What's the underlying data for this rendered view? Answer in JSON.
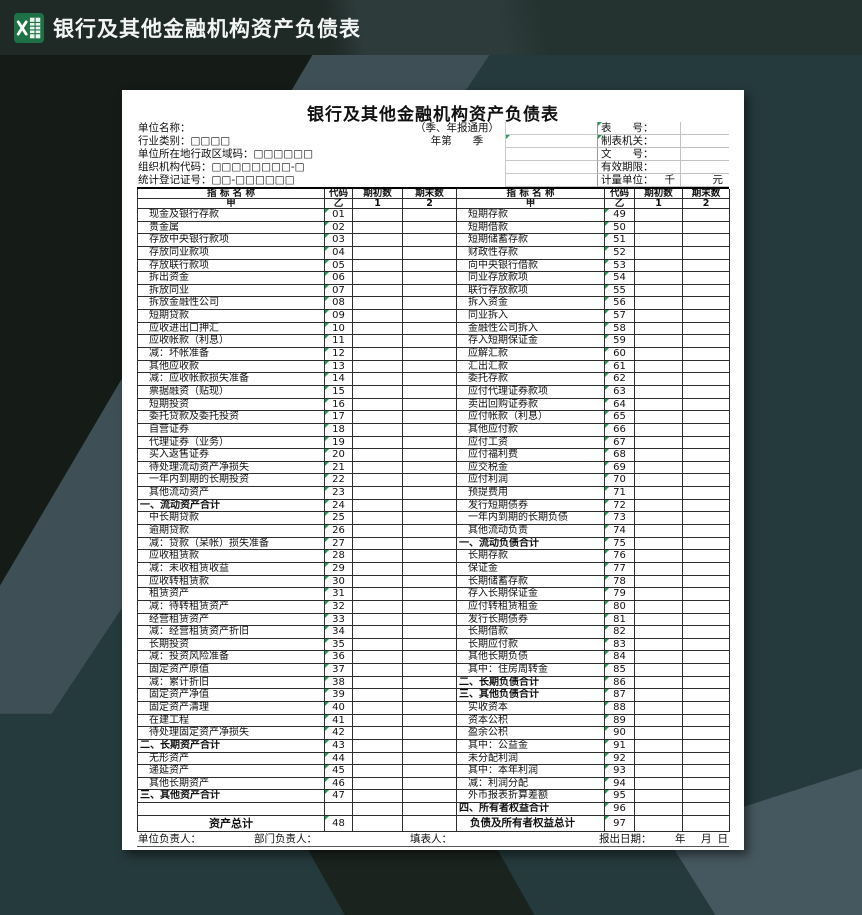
{
  "window": {
    "title": "银行及其他金融机构资产负债表"
  },
  "colors": {
    "excel_green": "#1e7145",
    "marker_green": "#1f9d55",
    "bg_dark": "#151c18",
    "bg_slate": "#3e5056",
    "bg_teal": "#253a3d",
    "sheet_bg": "#ffffff"
  },
  "sheet": {
    "title": "银行及其他金融机构资产负债表",
    "info_rows": [
      {
        "label": "单位名称：",
        "mid": "（季、年报通用）",
        "right_label": "表　　号：",
        "right_value": ""
      },
      {
        "label": "行业类别：□□□□",
        "mid": "年第　　季",
        "right_label": "制表机关：",
        "right_value": ""
      },
      {
        "label": "单位所在地行政区域码：□□□□□□",
        "mid": "",
        "right_label": "文　　号：",
        "right_value": ""
      },
      {
        "label": "组织机构代码：□□□□□□□□-□",
        "mid": "",
        "right_label": "有效期限：",
        "right_value": ""
      },
      {
        "label": "统计登记证号：□□-□□□□□□",
        "mid": "",
        "right_label": "计量单位：",
        "unit_thousand": "千",
        "unit_yuan": "元"
      }
    ],
    "columns": {
      "name": "指 标 名 称",
      "code": "代码",
      "begin": "期初数",
      "end": "期末数",
      "sub_name": "甲",
      "sub_code": "乙",
      "sub_begin": "1",
      "sub_end": "2"
    },
    "rows": [
      {
        "l": "现金及银行存款",
        "lc": "01",
        "ls": "item",
        "r": "短期存款",
        "rc": "49",
        "rs": "item"
      },
      {
        "l": "贵金属",
        "lc": "02",
        "ls": "item",
        "r": "短期借款",
        "rc": "50",
        "rs": "item"
      },
      {
        "l": "存放中央银行款项",
        "lc": "03",
        "ls": "item",
        "r": "短期储蓄存款",
        "rc": "51",
        "rs": "item"
      },
      {
        "l": "存放同业款项",
        "lc": "04",
        "ls": "item",
        "r": "财政性存款",
        "rc": "52",
        "rs": "item"
      },
      {
        "l": "存放联行款项",
        "lc": "05",
        "ls": "item",
        "r": "向中央银行借款",
        "rc": "53",
        "rs": "item"
      },
      {
        "l": "拆出资金",
        "lc": "06",
        "ls": "item",
        "r": "同业存放款项",
        "rc": "54",
        "rs": "item"
      },
      {
        "l": "拆放同业",
        "lc": "07",
        "ls": "item",
        "r": "联行存放款项",
        "rc": "55",
        "rs": "item"
      },
      {
        "l": "拆放金融性公司",
        "lc": "08",
        "ls": "item",
        "r": "拆入资金",
        "rc": "56",
        "rs": "item"
      },
      {
        "l": "短期贷款",
        "lc": "09",
        "ls": "item",
        "r": "同业拆入",
        "rc": "57",
        "rs": "item"
      },
      {
        "l": "应收进出口押汇",
        "lc": "10",
        "ls": "item",
        "r": "金融性公司拆入",
        "rc": "58",
        "rs": "item"
      },
      {
        "l": "应收帐款（利息）",
        "lc": "11",
        "ls": "item",
        "r": "存入短期保证金",
        "rc": "59",
        "rs": "item"
      },
      {
        "l": "减：坏帐准备",
        "lc": "12",
        "ls": "item",
        "r": "应解汇款",
        "rc": "60",
        "rs": "item"
      },
      {
        "l": "其他应收款",
        "lc": "13",
        "ls": "item",
        "r": "汇出汇款",
        "rc": "61",
        "rs": "item"
      },
      {
        "l": "减：应收帐款损失准备",
        "lc": "14",
        "ls": "item",
        "r": "委托存款",
        "rc": "62",
        "rs": "item"
      },
      {
        "l": "票据融资（贴现）",
        "lc": "15",
        "ls": "item",
        "r": "应付代理证券款项",
        "rc": "63",
        "rs": "item"
      },
      {
        "l": "短期投资",
        "lc": "16",
        "ls": "item",
        "r": "卖出回购证券款",
        "rc": "64",
        "rs": "item"
      },
      {
        "l": "委托贷款及委托投资",
        "lc": "17",
        "ls": "item",
        "r": "应付帐款（利息）",
        "rc": "65",
        "rs": "item"
      },
      {
        "l": "自营证券",
        "lc": "18",
        "ls": "item",
        "r": "其他应付款",
        "rc": "66",
        "rs": "item"
      },
      {
        "l": "代理证券（业务）",
        "lc": "19",
        "ls": "item",
        "r": "应付工资",
        "rc": "67",
        "rs": "item"
      },
      {
        "l": "买入返售证券",
        "lc": "20",
        "ls": "item",
        "r": "应付福利费",
        "rc": "68",
        "rs": "item"
      },
      {
        "l": "待处理流动资产净损失",
        "lc": "21",
        "ls": "item",
        "r": "应交税金",
        "rc": "69",
        "rs": "item"
      },
      {
        "l": "一年内到期的长期投资",
        "lc": "22",
        "ls": "item",
        "r": "应付利润",
        "rc": "70",
        "rs": "item"
      },
      {
        "l": "其他流动资产",
        "lc": "23",
        "ls": "item",
        "r": "预提费用",
        "rc": "71",
        "rs": "item"
      },
      {
        "l": "一、流动资产合计",
        "lc": "24",
        "ls": "section",
        "r": "发行短期债券",
        "rc": "72",
        "rs": "item"
      },
      {
        "l": "中长期贷款",
        "lc": "25",
        "ls": "item",
        "r": "一年内到期的长期负债",
        "rc": "73",
        "rs": "item"
      },
      {
        "l": "逾期贷款",
        "lc": "26",
        "ls": "item",
        "r": "其他流动负责",
        "rc": "74",
        "rs": "item"
      },
      {
        "l": "减：贷款（呆帐）损失准备",
        "lc": "27",
        "ls": "item",
        "r": "一、流动负债合计",
        "rc": "75",
        "rs": "section"
      },
      {
        "l": "应收租赁款",
        "lc": "28",
        "ls": "item",
        "r": "长期存款",
        "rc": "76",
        "rs": "item"
      },
      {
        "l": "减：未收租赁收益",
        "lc": "29",
        "ls": "item",
        "r": "保证金",
        "rc": "77",
        "rs": "item"
      },
      {
        "l": "应收转租赁款",
        "lc": "30",
        "ls": "item",
        "r": "长期储蓄存款",
        "rc": "78",
        "rs": "item"
      },
      {
        "l": "租赁资产",
        "lc": "31",
        "ls": "item",
        "r": "存入长期保证金",
        "rc": "79",
        "rs": "item"
      },
      {
        "l": "减：待转租赁资产",
        "lc": "32",
        "ls": "item",
        "r": "应付转租赁租金",
        "rc": "80",
        "rs": "item"
      },
      {
        "l": "经营租赁资产",
        "lc": "33",
        "ls": "item",
        "r": "发行长期债券",
        "rc": "81",
        "rs": "item"
      },
      {
        "l": "减：经营租赁资产折旧",
        "lc": "34",
        "ls": "item",
        "r": "长期借款",
        "rc": "82",
        "rs": "item"
      },
      {
        "l": "长期投资",
        "lc": "35",
        "ls": "item",
        "r": "长期应付款",
        "rc": "83",
        "rs": "item"
      },
      {
        "l": "减：投资风险准备",
        "lc": "36",
        "ls": "item",
        "r": "其他长期负债",
        "rc": "84",
        "rs": "item"
      },
      {
        "l": "固定资产原值",
        "lc": "37",
        "ls": "item",
        "r": "其中：住房周转金",
        "rc": "85",
        "rs": "item"
      },
      {
        "l": "减：累计折旧",
        "lc": "38",
        "ls": "item",
        "r": "二、长期负债合计",
        "rc": "86",
        "rs": "section"
      },
      {
        "l": "固定资产净值",
        "lc": "39",
        "ls": "item",
        "r": "三、其他负债合计",
        "rc": "87",
        "rs": "section"
      },
      {
        "l": "固定资产清理",
        "lc": "40",
        "ls": "item",
        "r": "实收资本",
        "rc": "88",
        "rs": "item"
      },
      {
        "l": "在建工程",
        "lc": "41",
        "ls": "item",
        "r": "资本公积",
        "rc": "89",
        "rs": "item"
      },
      {
        "l": "待处理固定资产净损失",
        "lc": "42",
        "ls": "item",
        "r": "盈余公积",
        "rc": "90",
        "rs": "item"
      },
      {
        "l": "二、长期资产合计",
        "lc": "43",
        "ls": "section",
        "r": "其中：公益金",
        "rc": "91",
        "rs": "item"
      },
      {
        "l": "无形资产",
        "lc": "44",
        "ls": "item",
        "r": "未分配利润",
        "rc": "92",
        "rs": "item"
      },
      {
        "l": "递延资产",
        "lc": "45",
        "ls": "item",
        "r": "其中：本年利润",
        "rc": "93",
        "rs": "item"
      },
      {
        "l": "其他长期资产",
        "lc": "46",
        "ls": "item",
        "r": "减：利润分配",
        "rc": "94",
        "rs": "item"
      },
      {
        "l": "三、其他资产合计",
        "lc": "47",
        "ls": "section",
        "r": "外币报表折算差额",
        "rc": "95",
        "rs": "item"
      },
      {
        "l": "",
        "lc": "",
        "ls": "blank",
        "r": "四、所有者权益合计",
        "rc": "96",
        "rs": "section"
      },
      {
        "l": "资产总计",
        "lc": "48",
        "ls": "total",
        "r": "负债及所有者权益总计",
        "rc": "97",
        "rs": "totalb"
      }
    ],
    "footer": {
      "unit_head": "单位负责人：",
      "dept_head": "部门负责人：",
      "preparer": "填表人：",
      "report_date": "报出日期：",
      "year": "年",
      "month": "月",
      "day": "日"
    }
  }
}
